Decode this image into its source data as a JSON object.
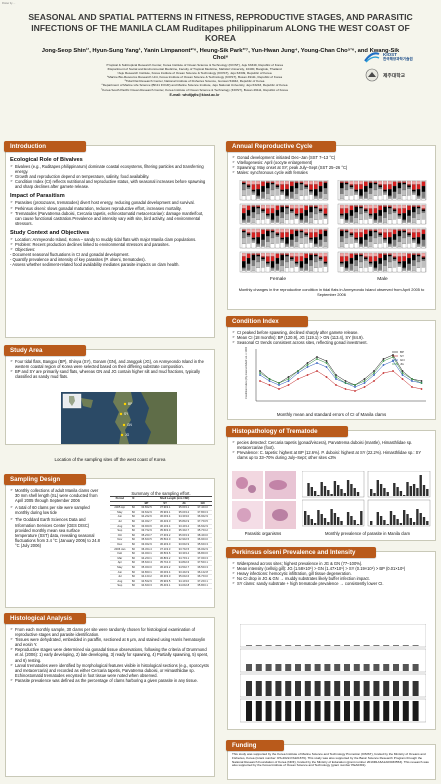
{
  "meta": {
    "tag": "Poster by ..."
  },
  "header": {
    "title": "SEASONAL AND SPATIAL PATTERNS IN FITNESS, REPRODUCTIVE STAGES, AND PARASITIC INFECTIONS OF THE MANILA CLAM Ruditapes philippinarum ALONG THE WEST COAST OF KOREA",
    "authors": "Jong-Seop Shin¹ʹ, Hyun-Sung Yang¹, Yanin Limpanont²ʹ⁶, Heung-Sik Park³ʹ⁷, Yun-Hwan Jung⁴, Young-Chan Cho⁵ʹ⁶, and Kwang-Sik Choi⁶",
    "affiliations": [
      "¹Tropical & Subtropical Research Center, Korea Institute of Ocean Science & Technology (KIOST), Jeju 63349, Republic of Korea",
      "²Department of Social and Environmental Medicine, Faculty of Tropical Medicine, Mahidol University, 10400, Bangkok, Thailand",
      "³Jeju Research Institute, Korea Institute of Ocean Science & Technology (KIOST), Jeju 63349, Republic of Korea",
      "⁴Marine Bio-Resource Research Unit, Korea Institute of Ocean Science & Technology (KIOST), Busan 49111, Republic of Korea",
      "⁵Tidal Flat Research Center, National Institute of Fisheries Science, Gunsan 54042, Republic of Korea",
      "⁶Department of Marine Life Science (BK21 FOUR) and Marine Science Institute, Jeju National University, Jeju 63243, Republic of Korea",
      "⁷Korea South Pacific Ocean Research Center, Korea Institute of Ocean Science & Technology (KIOST), Busan 49111, Republic of Korea"
    ],
    "email": "E-mail: whdtjqtls@kiost.ac.kr",
    "logo1": "KIOST",
    "logo1_sub": "한국해양과학기술원",
    "logo2": "제주대학교"
  },
  "introduction": {
    "heading": "Introduction",
    "sub1": "Ecological Role of Bivalves",
    "b1": [
      "Bivalves (e.g., Ruditapes philippinarum) dominate coastal ecosystems, filtering particles and transferring energy.",
      "Growth and reproduction depend on temperature, salinity, food availability.",
      "Condition Index (CI) reflects nutritional and reproductive status, with seasonal increases before spawning and sharp declines after gamete release."
    ],
    "sub2": "Impact of Parasitism",
    "b2": [
      "Parasites (protozoans, trematodes) divert host energy, reducing gonadal development and survival.",
      "Perkinsus olseni: slows gonadal maturation, reduces reproductive effort, increases mortality.",
      "Trematodes (Parvatrema duboisi, Cercaria tapetis, echinostomatid metacercariae): damage mantle/foot, can cause functional castration.Prevalence and intensity vary with site, bird activity, and environmental stressors."
    ],
    "sub3": "Study Context and Objectives",
    "b3": [
      "Location: Anmyeondo Island, Korea – sandy to muddy tidal flats with major Manila clam populations.",
      "Problem: Recent production declines linked to environmental stressors and parasites.",
      "Objectives:"
    ],
    "objectives": [
      "- Document seasonal fluctuations in CI and gonadal development.",
      "- Quantify prevalence and intensity of key parasites (P. olseni, trematodes).",
      "- Assess whether sediment-related food availability mediates parasite impacts on clam health."
    ]
  },
  "study_area": {
    "heading": "Study Area",
    "b": [
      "Four tidal flats, Bangpo (BP), Shinya (SY), Gonam (GN), and Janggok (JG), on Anmyeondo Island in the western coastal region of Korea were selected based on their differing substrate composition.",
      "BP and SY are primarily sand flats, whereas GN and JG contain higher silt and mud fractions, typically classified as sandy mud flats."
    ],
    "map_labels": [
      "BP",
      "SY",
      "GN",
      "JG"
    ],
    "caption": "Location of the sampling sites off the west coast of Korea"
  },
  "sampling": {
    "heading": "Sampling Design",
    "b": [
      "Monthly collections of adult Manila clams over 30 mm shell length (SL) were conducted from April 2005 through September 2006",
      "A total of 60 clams per site were sampled monthly during low tide",
      "The Goddard Earth Sciences Data and Information Services Center (GES DISC) provided monthly mean sea surface temperature (SST) data, revealing seasonal fluctuations from 3.4 °C (January 2006) to 24.8 °C (July 2006)"
    ],
    "table_title": "Summary of the sampling effort.",
    "table_head": [
      "Period",
      "N",
      "BP",
      "SY",
      "JG",
      "GN"
    ],
    "table_super": "Shell Length (mm ±SD)",
    "table_rows": [
      [
        "2005 Apr",
        "60",
        "33.8±2.5",
        "37.9±3.1",
        "35.6±3.1",
        "37.4±3.0"
      ],
      [
        "May",
        "60",
        "33.6±2.9",
        "35.9±3.1",
        "35.0±3.2",
        "37.8±3.3"
      ],
      [
        "Jun",
        "60",
        "34.2±2.6",
        "36.0±3.4",
        "34.3±3.0",
        "36.9±2.9"
      ],
      [
        "Jul",
        "60",
        "34.0±2.7",
        "36.4±3.0",
        "35.8±2.9",
        "37.7±3.5"
      ],
      [
        "Aug",
        "60",
        "33.9±3.6",
        "36.1±3.4",
        "33.4±3.4",
        "36.6±2.9"
      ],
      [
        "Sep",
        "60",
        "33.7±2.9",
        "35.6±3.0",
        "35.3±2.7",
        "35.7±3.2"
      ],
      [
        "Oct",
        "60",
        "35.2±3.7",
        "37.3±3.2",
        "35.6±3.3",
        "38.4±3.0"
      ],
      [
        "Nov",
        "60",
        "35.6±3.5",
        "35.5±4.0",
        "32.9±2.5",
        "36.9±3.0"
      ],
      [
        "Dec",
        "60",
        "33.0±2.9",
        "36.2±3.0",
        "33.6±2.9",
        "35.6±3.3"
      ],
      [
        "2006 Jan",
        "60",
        "36.3±4.4",
        "37.1±3.3",
        "33.7±2.5",
        "36.0±2.9"
      ],
      [
        "Feb",
        "60",
        "34.0±3.1",
        "36.5±3.6",
        "33.3±3.4",
        "36.8±3.6"
      ],
      [
        "Mar",
        "60",
        "34.2±3.1",
        "36.8±3.2",
        "34.7±3.1",
        "37.0±3.3"
      ],
      [
        "Apr",
        "60",
        "35.6±3.4",
        "35.7±4.0",
        "34.8±2.6",
        "37.5±3.1"
      ],
      [
        "May",
        "60",
        "35.0±3.0",
        "36.2±3.2",
        "34.5±2.7",
        "36.5±3.3"
      ],
      [
        "Jun",
        "60",
        "34.8±3.1",
        "36.0±3.4",
        "33.4±2.9",
        "36.1±2.8"
      ],
      [
        "Jul",
        "60",
        "34.1±3.2",
        "36.3±3.0",
        "35.0±2.6",
        "36.7±3.0"
      ],
      [
        "Aug",
        "60",
        "34.5±2.9",
        "35.9±3.5",
        "34.1±3.0",
        "37.2±3.1"
      ],
      [
        "Sep",
        "60",
        "34.6±3.3",
        "35.4±3.1",
        "34.0±2.8",
        "35.8±3.1"
      ]
    ]
  },
  "histology": {
    "heading": "Histological Analysis",
    "b": [
      "From each monthly sample, 30 clams per site were randomly chosen for histological examination of reproductive stages and parasite identification.",
      "Tissues were dehydrated, embedded in paraffin, sectioned at 6 μm, and stained using Harris hematoxylin and eosin Y.",
      "Reproductive stages were determined via gonadal tissue observations, following the criteria of Drummond et al. (2006): 1) early developing, 2) late developing, 3) ready for spawning, 4) Partially spawning, 5) spent, and 6) resting.",
      "Larval trematodes were identified by morphological features visible in histological sections (e.g., sporocysts and metacercaria) and recorded as either Cercaria tapetis, Parvatrema duboisi, or Himasthlidae sp. Echinostomatid trematodes encysted in foot tissue were noted when observed.",
      "Parasite prevalence was defined as the percentage of clams harboring a given parasite in any tissue."
    ]
  },
  "annual_cycle": {
    "heading": "Annual Reproductive Cycle",
    "b": [
      "Gonad development: initiated Dec–Jan (SST 7–13 °C)",
      "Vitellogenesis: April (oocyte enlargement)",
      "Spawning: May onset at SY; peak July–Sept (SST 25–26 °C)",
      "Males: synchronous cycle with females"
    ],
    "female_label": "Female",
    "male_label": "Male",
    "caption": "Monthly changes in the reproductive condition in tidal flats in Anmyeondo Island observed from April 2005 to September 2006",
    "stage_colors": [
      "#ffffff",
      "#bfbfbf",
      "#7f7f7f",
      "#000000",
      "#d62020",
      "#f4a3a3"
    ]
  },
  "condition_index": {
    "heading": "Condition Index",
    "b": [
      "CI peaked before spawning, declined sharply after gamete release.",
      "Mean CI (18 months): BP (120.9), JG (119.1) > GN (113.4), SY (84.9).",
      "Seasonal CI trends consistent across sites, reflecting gonad investment."
    ],
    "ylabel": "Condition index (dry meat wt/shell vol. x 1000)",
    "caption": "Monthly mean and standard errors of CI of Manila clams",
    "legend": [
      "BP",
      "SY",
      "GN",
      "JG"
    ],
    "colors": [
      "#1a1a1a",
      "#c22222",
      "#2454b8",
      "#2a8c3a"
    ]
  },
  "histopathology": {
    "heading": "Histopathology of Trematode Infections",
    "b": [
      "pecies detected: Cercaria tapetis (gonad/viscera), Parvatrema duboisi (mantle), Himasthlidae sp. metacercariae (foot).",
      "Prevalence: C. tapetis: highest at BP (12.6%). P. duboisi: highest at SY (22.2%). Himasthlidae sp.: SY clams up to 33–70% during July–Sept; other sites ≤3%"
    ],
    "cap_left": "Parasitic organisms",
    "cap_right": "Monthly prevalence of parasite in Manila clam"
  },
  "perkinsus": {
    "heading": "Perkinsus olseni Prevalence and Intensity",
    "b": [
      "Widespread across sites; highest prevalence in JG & GN (77–100%).",
      "Mean intensity (cells/g gill): JG (1.58×10⁶) > GN (1.47×10⁶) > SY (0.19×10⁶) > BP (0.01×10⁶)",
      "Heavy infections: hemocytic infiltration, gill tissue degeneration.",
      "No CI drop in JG & GN → muddy substrates likely buffer infection impact.",
      "SY clams: sandy substrate + high trematode prevalence → consistently lower CI."
    ]
  },
  "funding": {
    "heading": "Funding",
    "text": "This study was supported by the Korea Institute of Marine Science and Technology Promotion (KIMST), funded by the Ministry of Oceans and Fisheries, Korea (Grant number: RS-2022-KS221676). This study was also supported by the Basic Science Research Program through the National Research Foundation of Korea (NRF), funded by the Ministry of Education (grant number 2019R1A6A1A03033553). This research was also supported by the Korea Institute of Ocean Science and Technology (grant number PEA0301)."
  }
}
